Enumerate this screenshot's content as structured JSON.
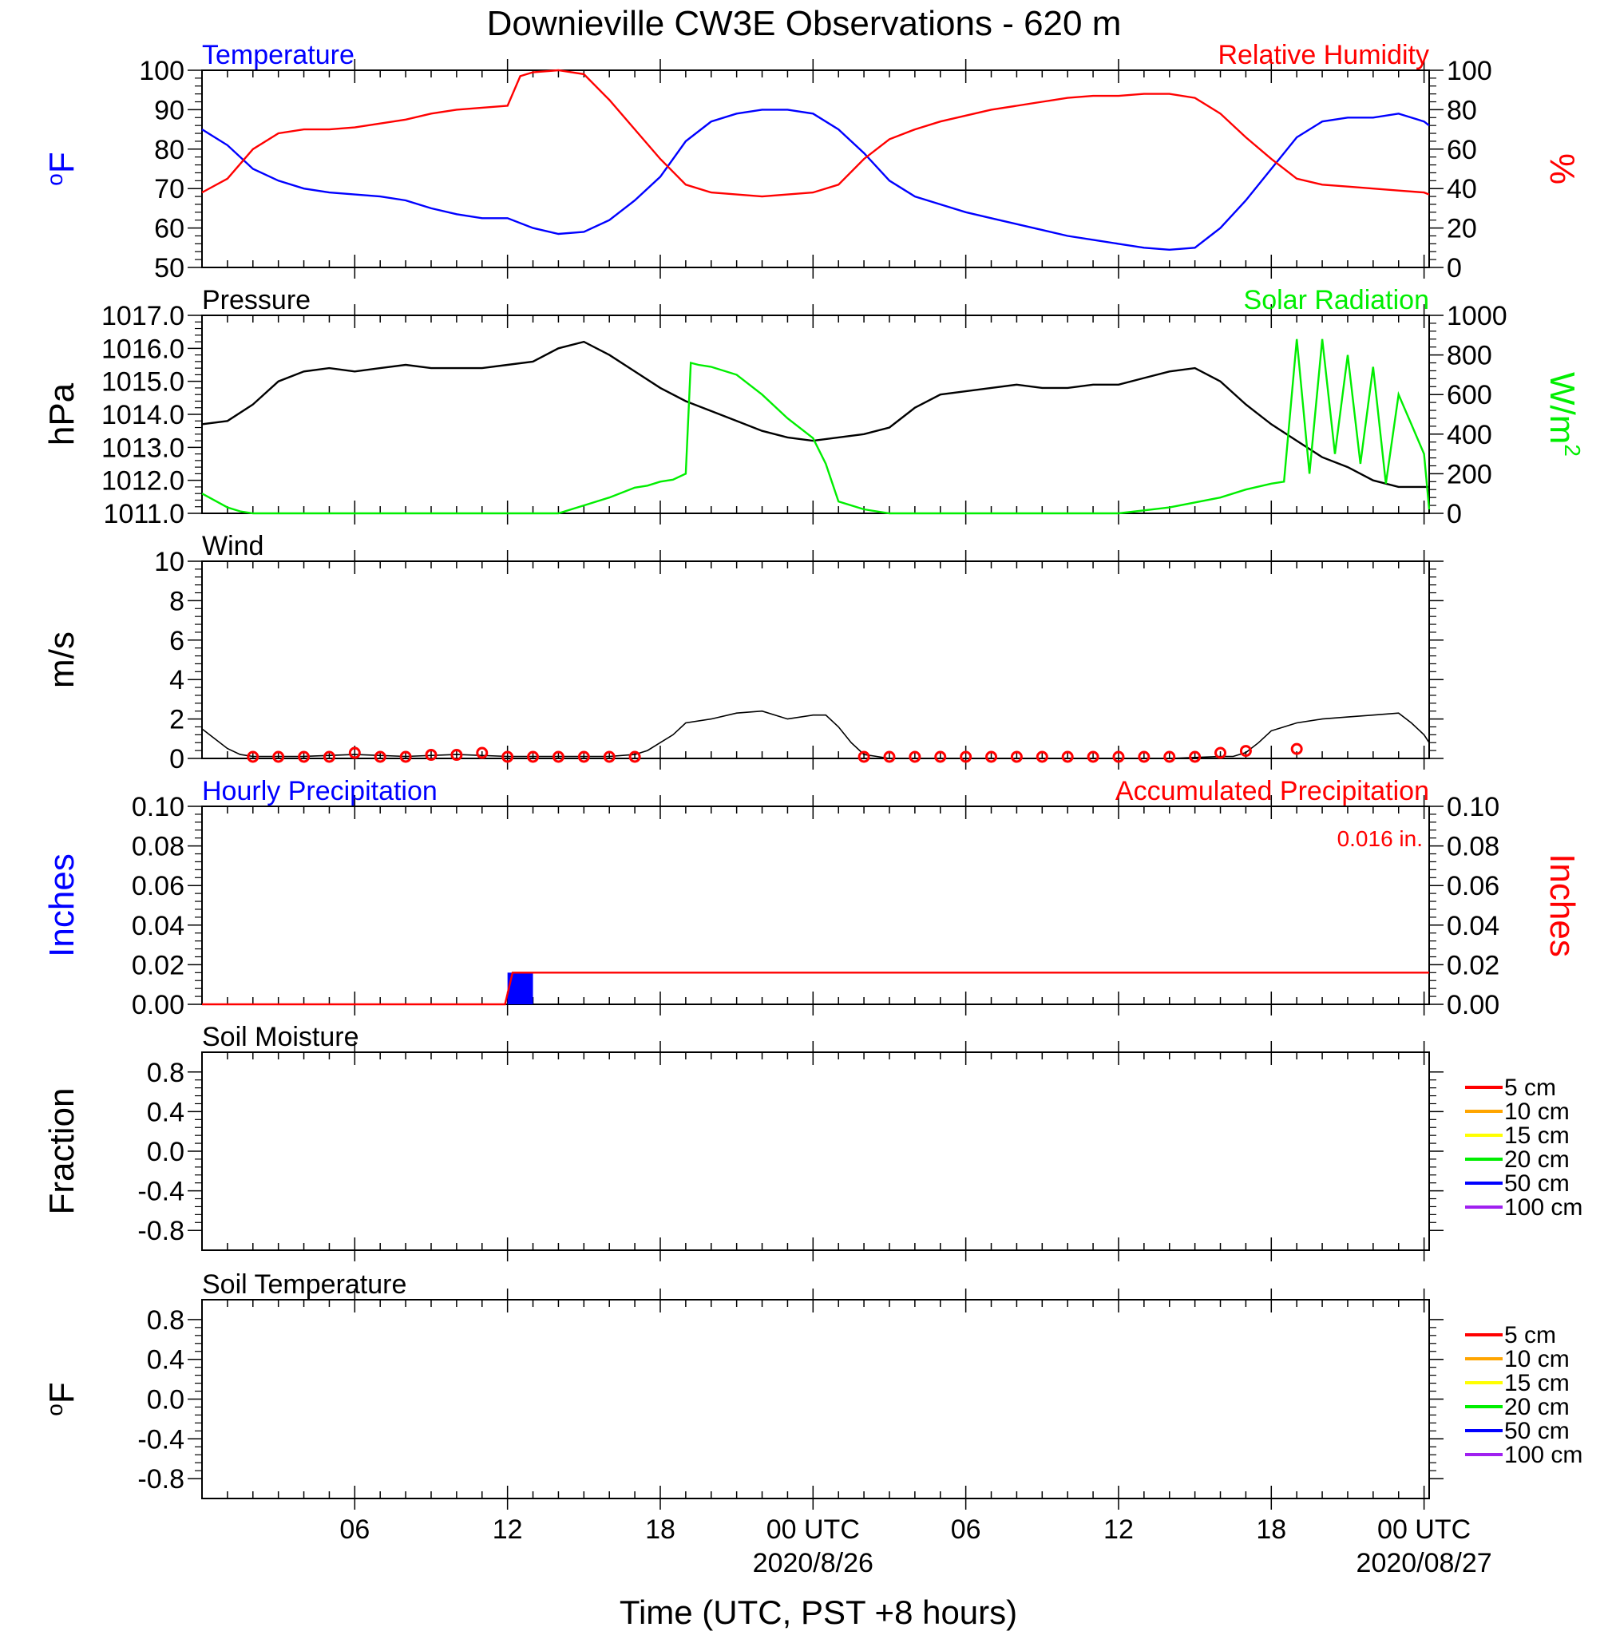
{
  "title": "Downieville CW3E Observations - 620 m",
  "x_axis": {
    "label": "Time (UTC, PST +8 hours)",
    "ticks": [
      {
        "t": 6,
        "label": "06"
      },
      {
        "t": 12,
        "label": "12"
      },
      {
        "t": 18,
        "label": "18"
      },
      {
        "t": 24,
        "label": "00 UTC"
      },
      {
        "t": 30,
        "label": "06"
      },
      {
        "t": 36,
        "label": "12"
      },
      {
        "t": 42,
        "label": "18"
      },
      {
        "t": 48,
        "label": "00 UTC"
      }
    ],
    "date_labels": [
      {
        "t": 24,
        "label": "2020/8/26"
      },
      {
        "t": 48,
        "label": "2020/08/27"
      }
    ]
  },
  "colors": {
    "temperature": "#0000ff",
    "humidity": "#ff0000",
    "pressure": "#000000",
    "solar": "#00ee00",
    "wind": "#000000",
    "wind_barb": "#ff0000",
    "hourly_precip": "#0000ff",
    "accum_precip": "#ff0000",
    "soil_5": "#ff0000",
    "soil_10": "#ffa500",
    "soil_15": "#ffff00",
    "soil_20": "#00ee00",
    "soil_50": "#0000ff",
    "soil_100": "#a020f0"
  },
  "chart_data": [
    {
      "id": "temp-rh",
      "type": "line",
      "title_left": "Temperature",
      "title_right": "Relative Humidity",
      "ylabel_left": "oF",
      "ylabel_right": "%",
      "ylim_left": [
        50,
        100
      ],
      "ylim_right": [
        0,
        100
      ],
      "yticks_left": [
        "50",
        "60",
        "70",
        "80",
        "90",
        "100"
      ],
      "yticks_right": [
        "0",
        "20",
        "40",
        "60",
        "80",
        "100"
      ],
      "xlim": [
        0,
        48.2
      ],
      "series": [
        {
          "axis": "left",
          "color_key": "temperature",
          "x": [
            0,
            1,
            2,
            3,
            4,
            5,
            6,
            7,
            8,
            9,
            10,
            11,
            12,
            13,
            14,
            15,
            16,
            17,
            18,
            19,
            20,
            21,
            22,
            23,
            24,
            25,
            26,
            27,
            28,
            29,
            30,
            31,
            32,
            33,
            34,
            35,
            36,
            37,
            38,
            39,
            40,
            41,
            42,
            43,
            44,
            45,
            46,
            47,
            48,
            48.2
          ],
          "values": [
            85,
            81,
            75,
            72,
            70,
            69,
            68.5,
            68,
            67,
            65,
            63.5,
            62.5,
            62.5,
            60,
            58.5,
            59,
            62,
            67,
            73,
            82,
            87,
            89,
            90,
            90,
            89,
            85,
            79,
            72,
            68,
            66,
            64,
            62.5,
            61,
            59.5,
            58,
            57,
            56,
            55,
            54.5,
            55,
            60,
            67,
            75,
            83,
            87,
            88,
            88,
            89,
            87,
            86
          ]
        },
        {
          "axis": "right",
          "color_key": "humidity",
          "x": [
            0,
            1,
            2,
            3,
            4,
            5,
            6,
            7,
            8,
            9,
            10,
            11,
            12,
            12.5,
            13,
            14,
            15,
            16,
            17,
            18,
            19,
            20,
            21,
            22,
            23,
            24,
            25,
            26,
            27,
            28,
            29,
            30,
            31,
            32,
            33,
            34,
            35,
            36,
            37,
            38,
            39,
            40,
            41,
            42,
            43,
            44,
            45,
            46,
            47,
            48,
            48.2
          ],
          "values": [
            38,
            45,
            60,
            68,
            70,
            70,
            71,
            73,
            75,
            78,
            80,
            81,
            82,
            97,
            99,
            100,
            98,
            85,
            70,
            55,
            42,
            38,
            37,
            36,
            37,
            38,
            42,
            55,
            65,
            70,
            74,
            77,
            80,
            82,
            84,
            86,
            87,
            87,
            88,
            88,
            86,
            78,
            66,
            55,
            45,
            42,
            41,
            40,
            39,
            38,
            37
          ]
        }
      ]
    },
    {
      "id": "pressure-solar",
      "type": "line",
      "title_left": "Pressure",
      "title_right": "Solar Radiation",
      "ylabel_left": "hPa",
      "ylabel_right": "W/m",
      "ylabel_right_sup": "2",
      "ylim_left": [
        1011,
        1017
      ],
      "ylim_right": [
        0,
        1000
      ],
      "yticks_left": [
        "1011.0",
        "1012.0",
        "1013.0",
        "1014.0",
        "1015.0",
        "1016.0",
        "1017.0"
      ],
      "yticks_right": [
        "0",
        "200",
        "400",
        "600",
        "800",
        "1000"
      ],
      "xlim": [
        0,
        48.2
      ],
      "series": [
        {
          "axis": "left",
          "color_key": "pressure",
          "x": [
            0,
            1,
            2,
            3,
            4,
            5,
            6,
            7,
            8,
            9,
            10,
            11,
            12,
            13,
            14,
            15,
            16,
            17,
            18,
            19,
            20,
            21,
            22,
            23,
            24,
            25,
            26,
            27,
            28,
            29,
            30,
            31,
            32,
            33,
            34,
            35,
            36,
            37,
            38,
            39,
            40,
            41,
            42,
            43,
            44,
            45,
            46,
            47,
            48,
            48.2
          ],
          "values": [
            1013.7,
            1013.8,
            1014.3,
            1015.0,
            1015.3,
            1015.4,
            1015.3,
            1015.4,
            1015.5,
            1015.4,
            1015.4,
            1015.4,
            1015.5,
            1015.6,
            1016.0,
            1016.2,
            1015.8,
            1015.3,
            1014.8,
            1014.4,
            1014.1,
            1013.8,
            1013.5,
            1013.3,
            1013.2,
            1013.3,
            1013.4,
            1013.6,
            1014.2,
            1014.6,
            1014.7,
            1014.8,
            1014.9,
            1014.8,
            1014.8,
            1014.9,
            1014.9,
            1015.1,
            1015.3,
            1015.4,
            1015.0,
            1014.3,
            1013.7,
            1013.2,
            1012.7,
            1012.4,
            1012.0,
            1011.8,
            1011.8,
            1011.8
          ]
        },
        {
          "axis": "right",
          "color_key": "solar",
          "x": [
            0,
            1,
            1.5,
            2,
            8,
            12,
            13,
            14,
            15,
            16,
            17,
            17.5,
            18,
            18.5,
            19,
            19.2,
            19.5,
            20,
            21,
            22,
            23,
            24,
            24.5,
            25,
            26,
            27,
            28,
            30,
            34,
            36,
            38,
            40,
            41,
            42,
            42.5,
            43,
            43.5,
            44,
            44.5,
            45,
            45.5,
            46,
            46.5,
            47,
            47.5,
            48,
            48.2
          ],
          "values": [
            100,
            30,
            10,
            0,
            0,
            0,
            0,
            0,
            40,
            80,
            130,
            140,
            160,
            170,
            200,
            760,
            750,
            740,
            700,
            600,
            480,
            380,
            250,
            60,
            20,
            0,
            0,
            0,
            0,
            0,
            30,
            80,
            120,
            150,
            160,
            880,
            200,
            880,
            300,
            800,
            250,
            740,
            150,
            600,
            450,
            300,
            20
          ]
        }
      ]
    },
    {
      "id": "wind",
      "type": "line",
      "title_left": "Wind",
      "ylabel_left": "m/s",
      "ylim_left": [
        0,
        10
      ],
      "yticks_left": [
        "0",
        "2",
        "4",
        "6",
        "8",
        "10"
      ],
      "xlim": [
        0,
        48.2
      ],
      "series": [
        {
          "axis": "left",
          "color_key": "wind",
          "x": [
            0,
            0.5,
            1,
            1.5,
            2,
            4,
            6,
            8,
            10,
            12,
            14,
            16,
            17,
            17.5,
            18,
            18.5,
            19,
            20,
            21,
            22,
            23,
            24,
            24.5,
            25,
            25.5,
            26,
            26.5,
            27,
            30,
            34,
            38,
            40,
            40.5,
            41,
            41.5,
            42,
            42.5,
            43,
            44,
            45,
            46,
            47,
            47.5,
            48,
            48.2
          ],
          "values": [
            1.5,
            1.0,
            0.5,
            0.2,
            0.1,
            0.1,
            0.2,
            0.1,
            0.2,
            0.1,
            0.1,
            0.1,
            0.2,
            0.4,
            0.8,
            1.2,
            1.8,
            2.0,
            2.3,
            2.4,
            2.0,
            2.2,
            2.2,
            1.6,
            0.8,
            0.2,
            0.1,
            0.0,
            0.0,
            0.0,
            0.0,
            0.1,
            0.1,
            0.3,
            0.8,
            1.4,
            1.6,
            1.8,
            2.0,
            2.1,
            2.2,
            2.3,
            1.8,
            1.2,
            0.8
          ]
        },
        {
          "axis": "left",
          "color_key": "wind_barb",
          "kind": "markers",
          "x": [
            2,
            3,
            4,
            5,
            6,
            7,
            8,
            9,
            10,
            11,
            12,
            13,
            14,
            15,
            16,
            17,
            26,
            27,
            28,
            29,
            30,
            31,
            32,
            33,
            34,
            35,
            36,
            37,
            38,
            39,
            40,
            41,
            43
          ],
          "values": [
            0,
            0,
            0,
            0,
            0.2,
            0,
            0,
            0.1,
            0.1,
            0.2,
            0,
            0,
            0,
            0,
            0,
            0,
            0,
            0,
            0,
            0,
            0,
            0,
            0,
            0,
            0,
            0,
            0,
            0,
            0,
            0,
            0.2,
            0.3,
            0.4
          ]
        }
      ]
    },
    {
      "id": "precip",
      "type": "bar",
      "title_left": "Hourly Precipitation",
      "title_right": "Accumulated Precipitation",
      "annotation": "0.016 in.",
      "ylabel_left": "Inches",
      "ylabel_right": "Inches",
      "ylim_left": [
        0,
        0.1
      ],
      "ylim_right": [
        0,
        0.1
      ],
      "yticks_left": [
        "0.00",
        "0.02",
        "0.04",
        "0.06",
        "0.08",
        "0.10"
      ],
      "yticks_right": [
        "0.00",
        "0.02",
        "0.04",
        "0.06",
        "0.08",
        "0.10"
      ],
      "xlim": [
        0,
        48.2
      ],
      "series": [
        {
          "axis": "left",
          "color_key": "hourly_precip",
          "kind": "bars",
          "x": [
            12
          ],
          "values": [
            0.016
          ]
        },
        {
          "axis": "right",
          "color_key": "accum_precip",
          "x": [
            0,
            11.9,
            12.2,
            48.2
          ],
          "values": [
            0,
            0,
            0.016,
            0.016
          ]
        }
      ]
    },
    {
      "id": "soil-moisture",
      "type": "line",
      "title_left": "Soil Moisture",
      "ylabel_left": "Fraction",
      "ylim_left": [
        -1,
        1
      ],
      "yticks_left": [
        "-0.8",
        "-0.4",
        "0.0",
        "0.4",
        "0.8"
      ],
      "xlim": [
        0,
        48.2
      ],
      "series": [],
      "legend": [
        "5 cm",
        "10 cm",
        "15 cm",
        "20 cm",
        "50 cm",
        "100 cm"
      ]
    },
    {
      "id": "soil-temperature",
      "type": "line",
      "title_left": "Soil Temperature",
      "ylabel_left": "oF",
      "ylim_left": [
        -1,
        1
      ],
      "yticks_left": [
        "-0.8",
        "-0.4",
        "0.0",
        "0.4",
        "0.8"
      ],
      "xlim": [
        0,
        48.2
      ],
      "series": [],
      "legend": [
        "5 cm",
        "10 cm",
        "15 cm",
        "20 cm",
        "50 cm",
        "100 cm"
      ]
    }
  ]
}
